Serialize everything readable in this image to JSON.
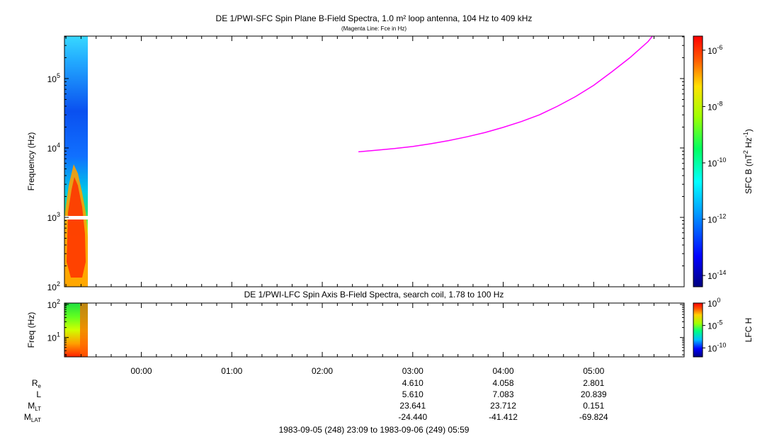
{
  "chart_data": [
    {
      "type": "heatmap",
      "name": "spin-plane-spectrogram",
      "title": "DE 1/PWI-SFC  Spin Plane B-Field Spectra, 1.0 m² loop antenna, 104 Hz to 409 kHz",
      "subtitle": "(Magenta Line: Fce in Hz)",
      "ylabel": "Frequency (Hz)",
      "y_scale": "log",
      "ylim": [
        100,
        409000
      ],
      "y_ticks": [
        {
          "value": 100,
          "base": "10",
          "exp": "2"
        },
        {
          "value": 1000,
          "base": "10",
          "exp": "3"
        },
        {
          "value": 10000,
          "base": "10",
          "exp": "4"
        },
        {
          "value": 100000,
          "base": "10",
          "exp": "5"
        }
      ],
      "xlim_hours": [
        -0.85,
        6.0
      ],
      "data_extent_hours": [
        -0.85,
        -0.6
      ],
      "colorbar": {
        "label_prefix": "SFC B (nT",
        "label_sup1": "2",
        "label_mid": " Hz",
        "label_sup2": "-1",
        "label_suffix": ")",
        "scale": "log",
        "ticks": [
          {
            "value": 1e-06,
            "base": "10",
            "exp": "-6"
          },
          {
            "value": 1e-08,
            "base": "10",
            "exp": "-8"
          },
          {
            "value": 1e-10,
            "base": "10",
            "exp": "-10"
          },
          {
            "value": 1e-12,
            "base": "10",
            "exp": "-12"
          },
          {
            "value": 1e-14,
            "base": "10",
            "exp": "-14"
          }
        ],
        "range_log": [
          -14.4,
          -5.5
        ]
      },
      "fce_line": {
        "color": "#ff00ff",
        "x_hours": [
          2.4,
          2.6,
          2.8,
          3.0,
          3.2,
          3.4,
          3.6,
          3.8,
          4.0,
          4.2,
          4.4,
          4.6,
          4.8,
          5.0,
          5.2,
          5.4,
          5.6,
          5.65
        ],
        "y_hz": [
          8800,
          9300,
          9800,
          10500,
          11500,
          12800,
          14500,
          16700,
          19800,
          24000,
          30000,
          40000,
          55000,
          80000,
          125000,
          200000,
          340000,
          409000
        ]
      }
    },
    {
      "type": "heatmap",
      "name": "spin-axis-spectrogram",
      "title": "DE 1/PWI-LFC  Spin Axis B-Field Spectra, search coil, 1.78 to 100 Hz",
      "ylabel": "Freq (Hz)",
      "y_scale": "log",
      "ylim": [
        2.6,
        110
      ],
      "y_ticks": [
        {
          "value": 10,
          "base": "10",
          "exp": "1"
        },
        {
          "value": 100,
          "base": "10",
          "exp": "2"
        }
      ],
      "colorbar": {
        "label": "LFC H",
        "scale": "log",
        "ticks": [
          {
            "value": 1,
            "base": "10",
            "exp": "0"
          },
          {
            "value": 1e-05,
            "base": "10",
            "exp": "-5"
          },
          {
            "value": 1e-10,
            "base": "10",
            "exp": "-10"
          }
        ],
        "range_log": [
          -12.0,
          0.0
        ]
      }
    }
  ],
  "time_axis": {
    "tick_labels": [
      {
        "hours": 0,
        "label": "00:00"
      },
      {
        "hours": 1,
        "label": "01:00"
      },
      {
        "hours": 2,
        "label": "02:00"
      },
      {
        "hours": 3,
        "label": "03:00"
      },
      {
        "hours": 4,
        "label": "04:00"
      },
      {
        "hours": 5,
        "label": "05:00"
      }
    ]
  },
  "ephemeris": {
    "rows": [
      {
        "main": "R",
        "sub": "e",
        "values": [
          "4.610",
          "4.058",
          "2.801"
        ]
      },
      {
        "main": "L",
        "sub": "",
        "values": [
          "5.610",
          "7.083",
          "20.839"
        ]
      },
      {
        "main": "M",
        "sub": "LT",
        "values": [
          "23.641",
          "23.712",
          "0.151"
        ]
      },
      {
        "main": "M",
        "sub": "LAT",
        "values": [
          "-24.440",
          "-41.412",
          "-69.824"
        ]
      }
    ],
    "value_hours": [
      3,
      4,
      5
    ]
  },
  "date_range": "1983-09-05 (248) 23:09 to 1983-09-06 (249) 05:59"
}
